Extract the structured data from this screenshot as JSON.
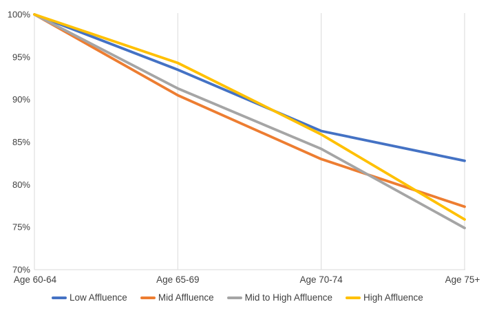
{
  "chart_data": {
    "type": "line",
    "title": "",
    "xlabel": "",
    "ylabel": "",
    "categories": [
      "Age 60-64",
      "Age 65-69",
      "Age 70-74",
      "Age 75+"
    ],
    "series": [
      {
        "name": "Low Affluence",
        "color": "#4472C4",
        "values": [
          100,
          93.5,
          86.3,
          82.8
        ]
      },
      {
        "name": "Mid Affluence",
        "color": "#ED7D31",
        "values": [
          100,
          90.5,
          83.0,
          77.4
        ]
      },
      {
        "name": "Mid to High Affluence",
        "color": "#A5A5A5",
        "values": [
          100,
          91.3,
          84.2,
          74.9
        ]
      },
      {
        "name": "High Affluence",
        "color": "#FFC000",
        "values": [
          100,
          94.3,
          85.9,
          75.9
        ]
      }
    ],
    "ylim": [
      70,
      100
    ],
    "y_tick_step": 5,
    "y_tick_labels": [
      "70%",
      "75%",
      "80%",
      "85%",
      "90%",
      "95%",
      "100%"
    ],
    "grid": "vertical-only",
    "legend_position": "bottom"
  },
  "styles": {
    "background": "#ffffff",
    "text_color": "#404040",
    "grid_color": "#D9D9D9",
    "axis_color": "#D9D9D9",
    "line_width": 3.8
  }
}
